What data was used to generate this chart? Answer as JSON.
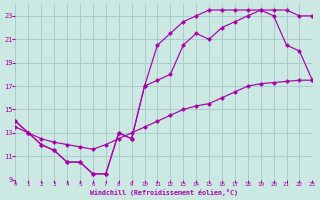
{
  "bg_color": "#cce8e2",
  "grid_color": "#aacccc",
  "line_color": "#aa00aa",
  "xlim": [
    0,
    23
  ],
  "ylim": [
    9,
    24
  ],
  "xticks": [
    0,
    1,
    2,
    3,
    4,
    5,
    6,
    7,
    8,
    9,
    10,
    11,
    12,
    13,
    14,
    15,
    16,
    17,
    18,
    19,
    20,
    21,
    22,
    23
  ],
  "yticks": [
    9,
    11,
    13,
    15,
    17,
    19,
    21,
    23
  ],
  "xlabel": "Windchill (Refroidissement éolien,°C)",
  "c1_x": [
    0,
    1,
    2,
    3,
    4,
    5,
    6,
    7,
    8,
    9,
    10,
    11,
    12,
    13,
    14,
    15,
    16,
    17,
    18,
    19,
    20,
    21,
    22,
    23
  ],
  "c1_y": [
    14,
    13,
    12,
    11.5,
    10.5,
    10.5,
    9.5,
    9.5,
    13,
    12.5,
    17,
    20.5,
    21.5,
    22.5,
    23,
    23.5,
    23.5,
    23.5,
    23.5,
    23.5,
    23.5,
    23.5,
    23,
    23
  ],
  "c2_x": [
    0,
    1,
    2,
    3,
    4,
    5,
    6,
    7,
    8,
    9,
    10,
    11,
    12,
    13,
    14,
    15,
    16,
    17,
    18,
    19,
    20,
    21,
    22,
    23
  ],
  "c2_y": [
    14,
    13,
    12,
    11.5,
    10.5,
    10.5,
    9.5,
    9.5,
    13,
    12.5,
    17,
    17.5,
    18,
    20.5,
    21.5,
    21,
    22,
    22.5,
    23,
    23.5,
    23,
    20.5,
    20,
    17.5
  ],
  "c3_x": [
    0,
    1,
    2,
    3,
    4,
    5,
    6,
    7,
    8,
    9,
    10,
    11,
    12,
    13,
    14,
    15,
    16,
    17,
    18,
    19,
    20,
    21,
    22,
    23
  ],
  "c3_y": [
    13.5,
    13.0,
    12.5,
    12.2,
    12.0,
    11.8,
    11.6,
    12.0,
    12.5,
    13.0,
    13.5,
    14.0,
    14.5,
    15.0,
    15.3,
    15.5,
    16.0,
    16.5,
    17.0,
    17.2,
    17.3,
    17.4,
    17.5,
    17.5
  ]
}
